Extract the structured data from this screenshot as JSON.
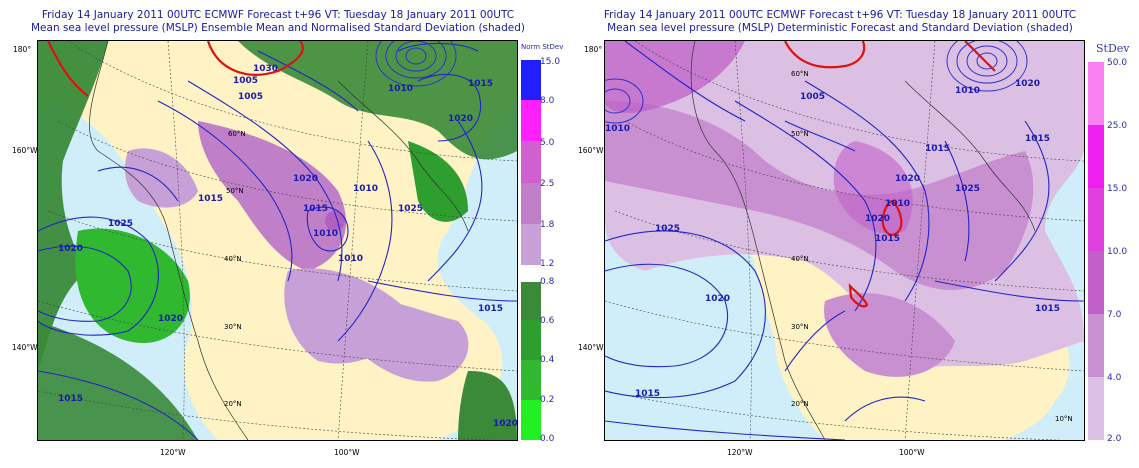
{
  "left": {
    "title_line1": "Friday 14 January 2011 00UTC ECMWF Forecast t+96  VT: Tuesday 18 January 2011 00UTC",
    "title_line2": "Mean sea level pressure (MSLP) Ensemble Mean and Normalised Standard Deviation (shaded)",
    "colorbar": {
      "title": "Norm StDev",
      "ticks": [
        "15.0",
        "8.0",
        "5.0",
        "2.5",
        "1.8",
        "1.2",
        "0.8",
        "0.6",
        "0.4",
        "0.2",
        "0.0"
      ],
      "colors": [
        "#2020ff",
        "#ff20ff",
        "#d060d0",
        "#c080c8",
        "#c8a0d8",
        "#3a8a3a",
        "#2e9e2e",
        "#30b830",
        "#2ad02a",
        "#22f022"
      ]
    },
    "lat_labels": [
      "60°N",
      "50°N",
      "40°N",
      "30°N",
      "20°N"
    ],
    "lon_labels": [
      "180°",
      "160°W",
      "140°W",
      "120°W",
      "100°W"
    ],
    "contour_labels": [
      "1005",
      "1005",
      "1010",
      "1015",
      "1015",
      "1015",
      "1020",
      "1020",
      "1025",
      "1010",
      "1015",
      "1010",
      "1020",
      "1025",
      "1020",
      "1015",
      "1020",
      "1010",
      "1030"
    ]
  },
  "right": {
    "title_line1": "Friday 14 January 2011 00UTC ECMWF Forecast t+96  VT: Tuesday 18 January 2011 00UTC",
    "title_line2": "Mean sea level pressure (MSLP) Deterministic Forecast and Standard Deviation (shaded)",
    "colorbar": {
      "title": "StDev",
      "ticks": [
        "50.0",
        "25.0",
        "15.0",
        "10.0",
        "7.0",
        "4.0",
        "2.0"
      ],
      "colors": [
        "#f880f0",
        "#f020f0",
        "#e040e0",
        "#c060c8",
        "#c890d0",
        "#dcc0e4"
      ]
    },
    "lat_labels": [
      "60°N",
      "50°N",
      "40°N",
      "30°N",
      "20°N",
      "10°N"
    ],
    "lon_labels": [
      "180°",
      "160°W",
      "140°W",
      "120°W",
      "100°W"
    ],
    "contour_labels": [
      "1005",
      "1010",
      "1010",
      "1015",
      "1015",
      "1015",
      "1020",
      "1020",
      "1025",
      "1020",
      "1025",
      "1015",
      "1010",
      "1015",
      "1020"
    ]
  }
}
